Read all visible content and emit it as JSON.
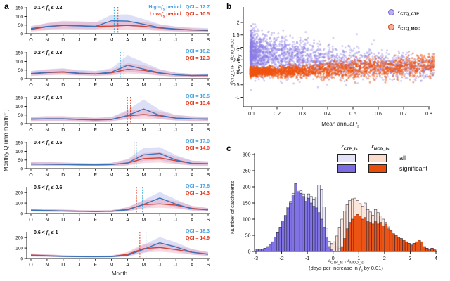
{
  "panels": {
    "a": {
      "label": "a",
      "ylabel": "Monthly Q (mm month⁻¹)",
      "xlabel": "Month"
    },
    "b": {
      "label": "b",
      "ylabel_line1": "ε_{CTQ_CTP} - ε_{CTQ_MOD}",
      "ylabel_line2": "(day day⁻¹)",
      "xlabel": "Mean annual f_{s}",
      "legend": [
        {
          "label": "ε_{CTQ_CTP}",
          "fill": "#b9aff0",
          "edge": "#7262d8"
        },
        {
          "label": "ε_{CTQ_MOD}",
          "fill": "#f2b09a",
          "edge": "#c44008"
        }
      ]
    },
    "c": {
      "label": "c",
      "ylabel": "Number of catchments",
      "xlabel_line1": "ε_{CTP_fs} , ε_{MOD_fs}",
      "xlabel_line2": "(days per increase in f_{s} by 0.01)",
      "legend": {
        "col1_header": "ε_{CTP_fs}",
        "col2_header": "ε_{MOD_fs}",
        "row1_label": "all",
        "row2_label": "significant",
        "sw_ctp_all": "#e3e1f8",
        "sw_ctp_sig": "#7b6ce4",
        "sw_mod_all": "#fbdcca",
        "sw_mod_sig": "#ea4c0a"
      }
    }
  },
  "chart_data": [
    {
      "panel": "a",
      "type": "line",
      "months": [
        "O",
        "N",
        "D",
        "J",
        "F",
        "M",
        "A",
        "M",
        "J",
        "J",
        "A",
        "S"
      ],
      "colors": {
        "blue_line": "#3c74b9",
        "red_line": "#cc4438",
        "blue_band": "#8a96e0",
        "red_band": "#ee8fa8",
        "blue_text": "#49a2e0",
        "red_text": "#e8391c",
        "blue_vline": "#35aadf",
        "red_vline": "#e03e2a"
      },
      "subplots": [
        {
          "title": "0.1 < f̄_{s} ≤ 0.2",
          "ymax": 155,
          "yticks": [
            0,
            50,
            100,
            150
          ],
          "legend_blue": "High-f_{s} period : QCI = 12.7",
          "legend_red": "Low-f_{s} period :  QCI = 10.5",
          "blue": [
            30,
            42,
            48,
            45,
            42,
            75,
            73,
            55,
            35,
            27,
            22,
            20
          ],
          "red": [
            25,
            40,
            48,
            46,
            43,
            44,
            48,
            43,
            33,
            26,
            21,
            18
          ],
          "blue_up": [
            45,
            60,
            70,
            68,
            65,
            110,
            112,
            85,
            55,
            42,
            35,
            32
          ],
          "blue_lo": [
            18,
            25,
            30,
            28,
            26,
            42,
            45,
            32,
            20,
            15,
            12,
            10
          ],
          "red_up": [
            40,
            62,
            75,
            72,
            68,
            70,
            75,
            68,
            52,
            40,
            32,
            28
          ],
          "red_lo": [
            12,
            20,
            25,
            24,
            22,
            22,
            25,
            22,
            16,
            12,
            10,
            8
          ],
          "vlines": [
            {
              "series": "blue",
              "month_index": 5.17
            },
            {
              "series": "red",
              "month_index": 5.4
            }
          ]
        },
        {
          "title": "0.2 < f̄_{s} ≤ 0.3",
          "ymax": 155,
          "yticks": [
            0,
            50,
            100,
            150
          ],
          "legend_blue": "QCI = 16.2",
          "legend_red": "QCI = 12.3",
          "blue": [
            30,
            37,
            40,
            32,
            28,
            38,
            78,
            56,
            34,
            22,
            18,
            20
          ],
          "red": [
            28,
            35,
            38,
            30,
            27,
            34,
            55,
            48,
            32,
            22,
            18,
            18
          ],
          "blue_up": [
            45,
            55,
            60,
            50,
            45,
            60,
            135,
            95,
            55,
            35,
            28,
            30
          ],
          "blue_lo": [
            18,
            22,
            25,
            20,
            17,
            22,
            42,
            30,
            18,
            12,
            10,
            11
          ],
          "red_up": [
            42,
            52,
            58,
            46,
            42,
            52,
            90,
            78,
            52,
            34,
            28,
            28
          ],
          "red_lo": [
            15,
            20,
            22,
            18,
            16,
            19,
            30,
            26,
            17,
            11,
            9,
            9
          ],
          "vlines": [
            {
              "series": "blue",
              "month_index": 5.55
            },
            {
              "series": "red",
              "month_index": 5.78
            }
          ]
        },
        {
          "title": "0.3 < f̄_{s} ≤ 0.4",
          "ymax": 155,
          "yticks": [
            0,
            50,
            100,
            150
          ],
          "legend_blue": "QCI = 16.5",
          "legend_red": "QCI = 13.4",
          "blue": [
            27,
            28,
            28,
            25,
            22,
            25,
            47,
            85,
            48,
            32,
            28,
            27
          ],
          "red": [
            26,
            28,
            28,
            24,
            21,
            24,
            45,
            53,
            45,
            32,
            28,
            26
          ],
          "blue_up": [
            40,
            42,
            42,
            38,
            34,
            38,
            80,
            140,
            80,
            50,
            42,
            40
          ],
          "blue_lo": [
            16,
            17,
            17,
            15,
            13,
            15,
            26,
            48,
            27,
            18,
            16,
            16
          ],
          "red_up": [
            40,
            44,
            44,
            38,
            33,
            37,
            72,
            85,
            70,
            50,
            43,
            40
          ],
          "red_lo": [
            15,
            16,
            16,
            14,
            12,
            14,
            25,
            30,
            25,
            18,
            16,
            15
          ],
          "vlines": [
            {
              "series": "blue",
              "month_index": 6.0
            },
            {
              "series": "red",
              "month_index": 6.18
            }
          ]
        },
        {
          "title": "0.4 < f̄_{s} ≤ 0.5",
          "ymax": 155,
          "yticks": [
            0,
            50,
            100,
            150
          ],
          "legend_blue": "QCI = 17.0",
          "legend_red": "QCI = 14.0",
          "blue": [
            26,
            25,
            24,
            22,
            21,
            23,
            33,
            80,
            88,
            50,
            30,
            28
          ],
          "red": [
            26,
            25,
            24,
            22,
            21,
            23,
            32,
            58,
            62,
            45,
            30,
            28
          ],
          "blue_up": [
            38,
            37,
            35,
            32,
            30,
            33,
            55,
            120,
            125,
            78,
            46,
            42
          ],
          "blue_lo": [
            16,
            15,
            14,
            13,
            12,
            14,
            19,
            45,
            50,
            28,
            18,
            17
          ],
          "red_up": [
            38,
            37,
            35,
            32,
            30,
            33,
            52,
            90,
            95,
            70,
            46,
            42
          ],
          "red_lo": [
            15,
            14,
            13,
            12,
            12,
            13,
            18,
            32,
            35,
            25,
            17,
            16
          ],
          "vlines": [
            {
              "series": "red",
              "month_index": 6.4
            },
            {
              "series": "blue",
              "month_index": 6.54
            }
          ]
        },
        {
          "title": "0.5 < f̄_{s} ≤ 0.6",
          "ymax": 255,
          "yticks": [
            0,
            100,
            200
          ],
          "legend_blue": "QCI = 17.6",
          "legend_red": "QCI = 14.3",
          "blue": [
            32,
            28,
            25,
            22,
            20,
            22,
            35,
            88,
            148,
            90,
            45,
            35
          ],
          "red": [
            32,
            28,
            25,
            22,
            20,
            22,
            40,
            85,
            92,
            80,
            50,
            36
          ],
          "blue_up": [
            48,
            42,
            38,
            33,
            30,
            33,
            58,
            130,
            205,
            135,
            70,
            52
          ],
          "blue_lo": [
            20,
            17,
            15,
            13,
            12,
            13,
            20,
            50,
            95,
            55,
            27,
            22
          ],
          "red_up": [
            48,
            42,
            38,
            33,
            30,
            33,
            62,
            125,
            135,
            120,
            75,
            54
          ],
          "red_lo": [
            19,
            17,
            15,
            13,
            12,
            13,
            23,
            50,
            55,
            48,
            30,
            22
          ],
          "vlines": [
            {
              "series": "red",
              "month_index": 6.55
            },
            {
              "series": "blue",
              "month_index": 6.93
            }
          ]
        },
        {
          "title": "0.6 < f̄_{s} ≤ 1",
          "ymax": 255,
          "yticks": [
            0,
            100,
            200
          ],
          "legend_blue": "QCI = 18.3",
          "legend_red": "QCI = 14.9",
          "blue": [
            30,
            25,
            20,
            18,
            17,
            18,
            30,
            88,
            150,
            110,
            60,
            40
          ],
          "red": [
            33,
            27,
            22,
            19,
            18,
            20,
            40,
            95,
            105,
            85,
            60,
            42
          ],
          "blue_up": [
            45,
            38,
            30,
            27,
            25,
            27,
            50,
            130,
            205,
            155,
            90,
            60
          ],
          "blue_lo": [
            18,
            15,
            12,
            11,
            10,
            11,
            18,
            52,
            100,
            70,
            36,
            25
          ],
          "red_up": [
            50,
            40,
            33,
            28,
            27,
            30,
            62,
            140,
            150,
            125,
            90,
            62
          ],
          "red_lo": [
            20,
            16,
            13,
            11,
            11,
            12,
            24,
            58,
            65,
            52,
            36,
            26
          ],
          "vlines": [
            {
              "series": "red",
              "month_index": 6.76
            },
            {
              "series": "blue",
              "month_index": 7.14
            }
          ]
        }
      ]
    },
    {
      "panel": "b",
      "type": "scatter",
      "xlim": [
        0.05,
        0.85
      ],
      "ylim": [
        -1.3,
        2.3
      ],
      "xticks": [
        0.1,
        0.2,
        0.3,
        0.4,
        0.5,
        0.6,
        0.7,
        0.8
      ],
      "yticks": [
        -1,
        -0.5,
        0,
        0.5,
        1,
        1.5,
        2
      ],
      "seed": 42,
      "series": [
        {
          "name": "ε_{CTQ_CTP}",
          "n": 2300,
          "fill": "#8a7ae6",
          "opacity": 0.35,
          "x_min": 0.095,
          "x_max": 0.82,
          "x_skew": 2.1,
          "trend": {
            "x": [
              0.1,
              0.2,
              0.3,
              0.4,
              0.5,
              0.6,
              0.7,
              0.8
            ],
            "mean": [
              0.78,
              0.68,
              0.55,
              0.45,
              0.38,
              0.3,
              0.26,
              0.22
            ],
            "sd": [
              0.42,
              0.4,
              0.37,
              0.34,
              0.3,
              0.28,
              0.26,
              0.24
            ]
          }
        },
        {
          "name": "ε_{CTQ_MOD}",
          "n": 2300,
          "fill": "#f0540f",
          "opacity": 0.45,
          "x_min": 0.095,
          "x_max": 0.82,
          "x_skew": 2.1,
          "trend": {
            "x": [
              0.1,
              0.2,
              0.3,
              0.4,
              0.5,
              0.6,
              0.7,
              0.8
            ],
            "mean": [
              0.02,
              0.03,
              0.06,
              0.1,
              0.14,
              0.18,
              0.24,
              0.3
            ],
            "sd": [
              0.08,
              0.1,
              0.13,
              0.16,
              0.18,
              0.2,
              0.22,
              0.22
            ]
          }
        }
      ]
    },
    {
      "panel": "c",
      "type": "bar",
      "bin_width": 0.1,
      "xlim": [
        -3,
        4
      ],
      "ylim": [
        0,
        300
      ],
      "xticks": [
        -3,
        -2,
        -1,
        0,
        1,
        2,
        3,
        4
      ],
      "yticks": [
        0,
        50,
        100,
        150,
        200,
        250,
        300
      ],
      "stroke": "#25253a",
      "series": [
        {
          "name": "ctp_all",
          "fill": "#e3e1f8",
          "opacity": 0.7,
          "start": -3.0,
          "counts": [
            8,
            5,
            8,
            10,
            15,
            22,
            30,
            45,
            60,
            75,
            95,
            112,
            138,
            155,
            180,
            212,
            190,
            188,
            178,
            168,
            178,
            170,
            162,
            168,
            205,
            192,
            138,
            72,
            32,
            25,
            30,
            15,
            10,
            5,
            3,
            2,
            1,
            1
          ]
        },
        {
          "name": "mod_all",
          "fill": "#fbdcca",
          "opacity": 0.7,
          "start": -0.5,
          "counts": [
            3,
            6,
            10,
            15,
            22,
            30,
            48,
            75,
            100,
            125,
            145,
            158,
            163,
            165,
            158,
            148,
            140,
            150,
            130,
            122,
            112,
            130,
            120,
            110,
            100,
            90,
            76,
            62,
            50,
            45,
            45,
            40,
            35,
            30,
            25,
            20,
            25,
            30,
            35,
            30,
            15,
            10,
            8,
            10,
            5
          ]
        },
        {
          "name": "ctp_sig",
          "fill": "#7b6ce4",
          "opacity": 0.95,
          "start": -3.0,
          "counts": [
            8,
            5,
            8,
            10,
            15,
            22,
            30,
            45,
            60,
            75,
            95,
            110,
            135,
            150,
            175,
            210,
            185,
            180,
            170,
            155,
            165,
            150,
            140,
            135,
            120,
            100,
            75,
            45,
            15,
            5
          ]
        },
        {
          "name": "mod_sig",
          "fill": "#ea4c0a",
          "opacity": 0.95,
          "start": 0.3,
          "counts": [
            15,
            40,
            70,
            90,
            100,
            110,
            115,
            110,
            100,
            105,
            95,
            90,
            85,
            95,
            85,
            90,
            80,
            85,
            70,
            65,
            55,
            50,
            45,
            40,
            35,
            30,
            25,
            20,
            25,
            30,
            35,
            30,
            15,
            10,
            8,
            10,
            5
          ]
        }
      ]
    }
  ]
}
